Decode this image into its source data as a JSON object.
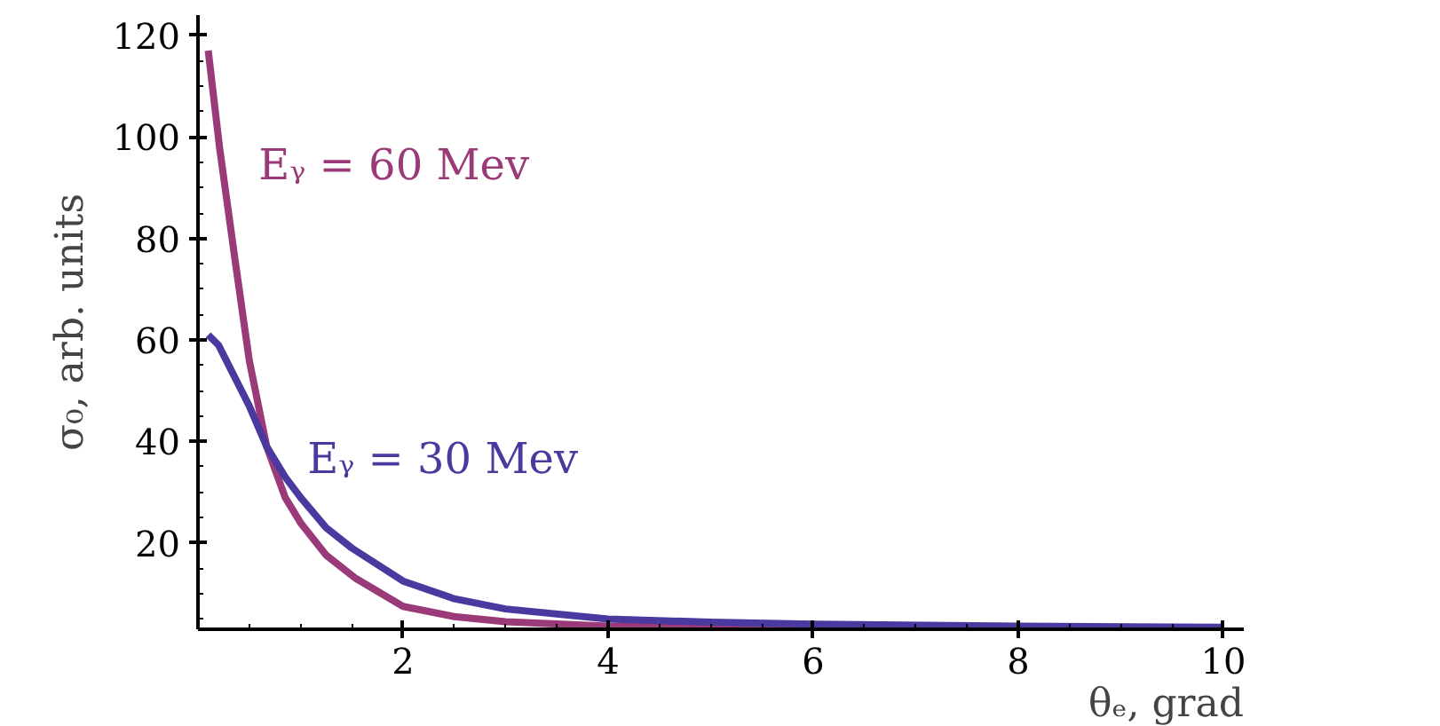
{
  "chart_data": {
    "type": "line",
    "xlabel": "θₑ, grad",
    "ylabel": "σ₀, arb. units",
    "xlim": [
      0,
      10.2
    ],
    "ylim": [
      3,
      124
    ],
    "xticks": [
      2,
      4,
      6,
      8,
      10
    ],
    "yticks": [
      20,
      40,
      60,
      80,
      100,
      120
    ],
    "grid": false,
    "marker": "none",
    "line_style": "solid",
    "series": [
      {
        "name": "Eᵧ = 60 Mev",
        "color": "#9b3a78",
        "x": [
          0.1,
          0.21,
          0.36,
          0.5,
          0.67,
          0.85,
          1.0,
          1.25,
          1.54,
          2.0,
          2.5,
          3.0,
          4.0,
          6.0,
          8.0,
          10.0
        ],
        "values": [
          117,
          98,
          76,
          56,
          39,
          29,
          24,
          17.6,
          13,
          7.5,
          5.5,
          4.5,
          3.6,
          3.3,
          3.2,
          3.2
        ]
      },
      {
        "name": "Eᵧ = 30 Mev",
        "color": "#4a3aa0",
        "x": [
          0.1,
          0.2,
          0.3,
          0.4,
          0.5,
          0.67,
          0.85,
          1.0,
          1.25,
          1.5,
          2.0,
          2.5,
          3.0,
          4.0,
          5.0,
          6.0,
          8.0,
          10.0
        ],
        "values": [
          61,
          59,
          55,
          51,
          47,
          39,
          33,
          29,
          23,
          19,
          12.5,
          9,
          7,
          5,
          4.4,
          4,
          3.6,
          3.4
        ]
      }
    ]
  }
}
